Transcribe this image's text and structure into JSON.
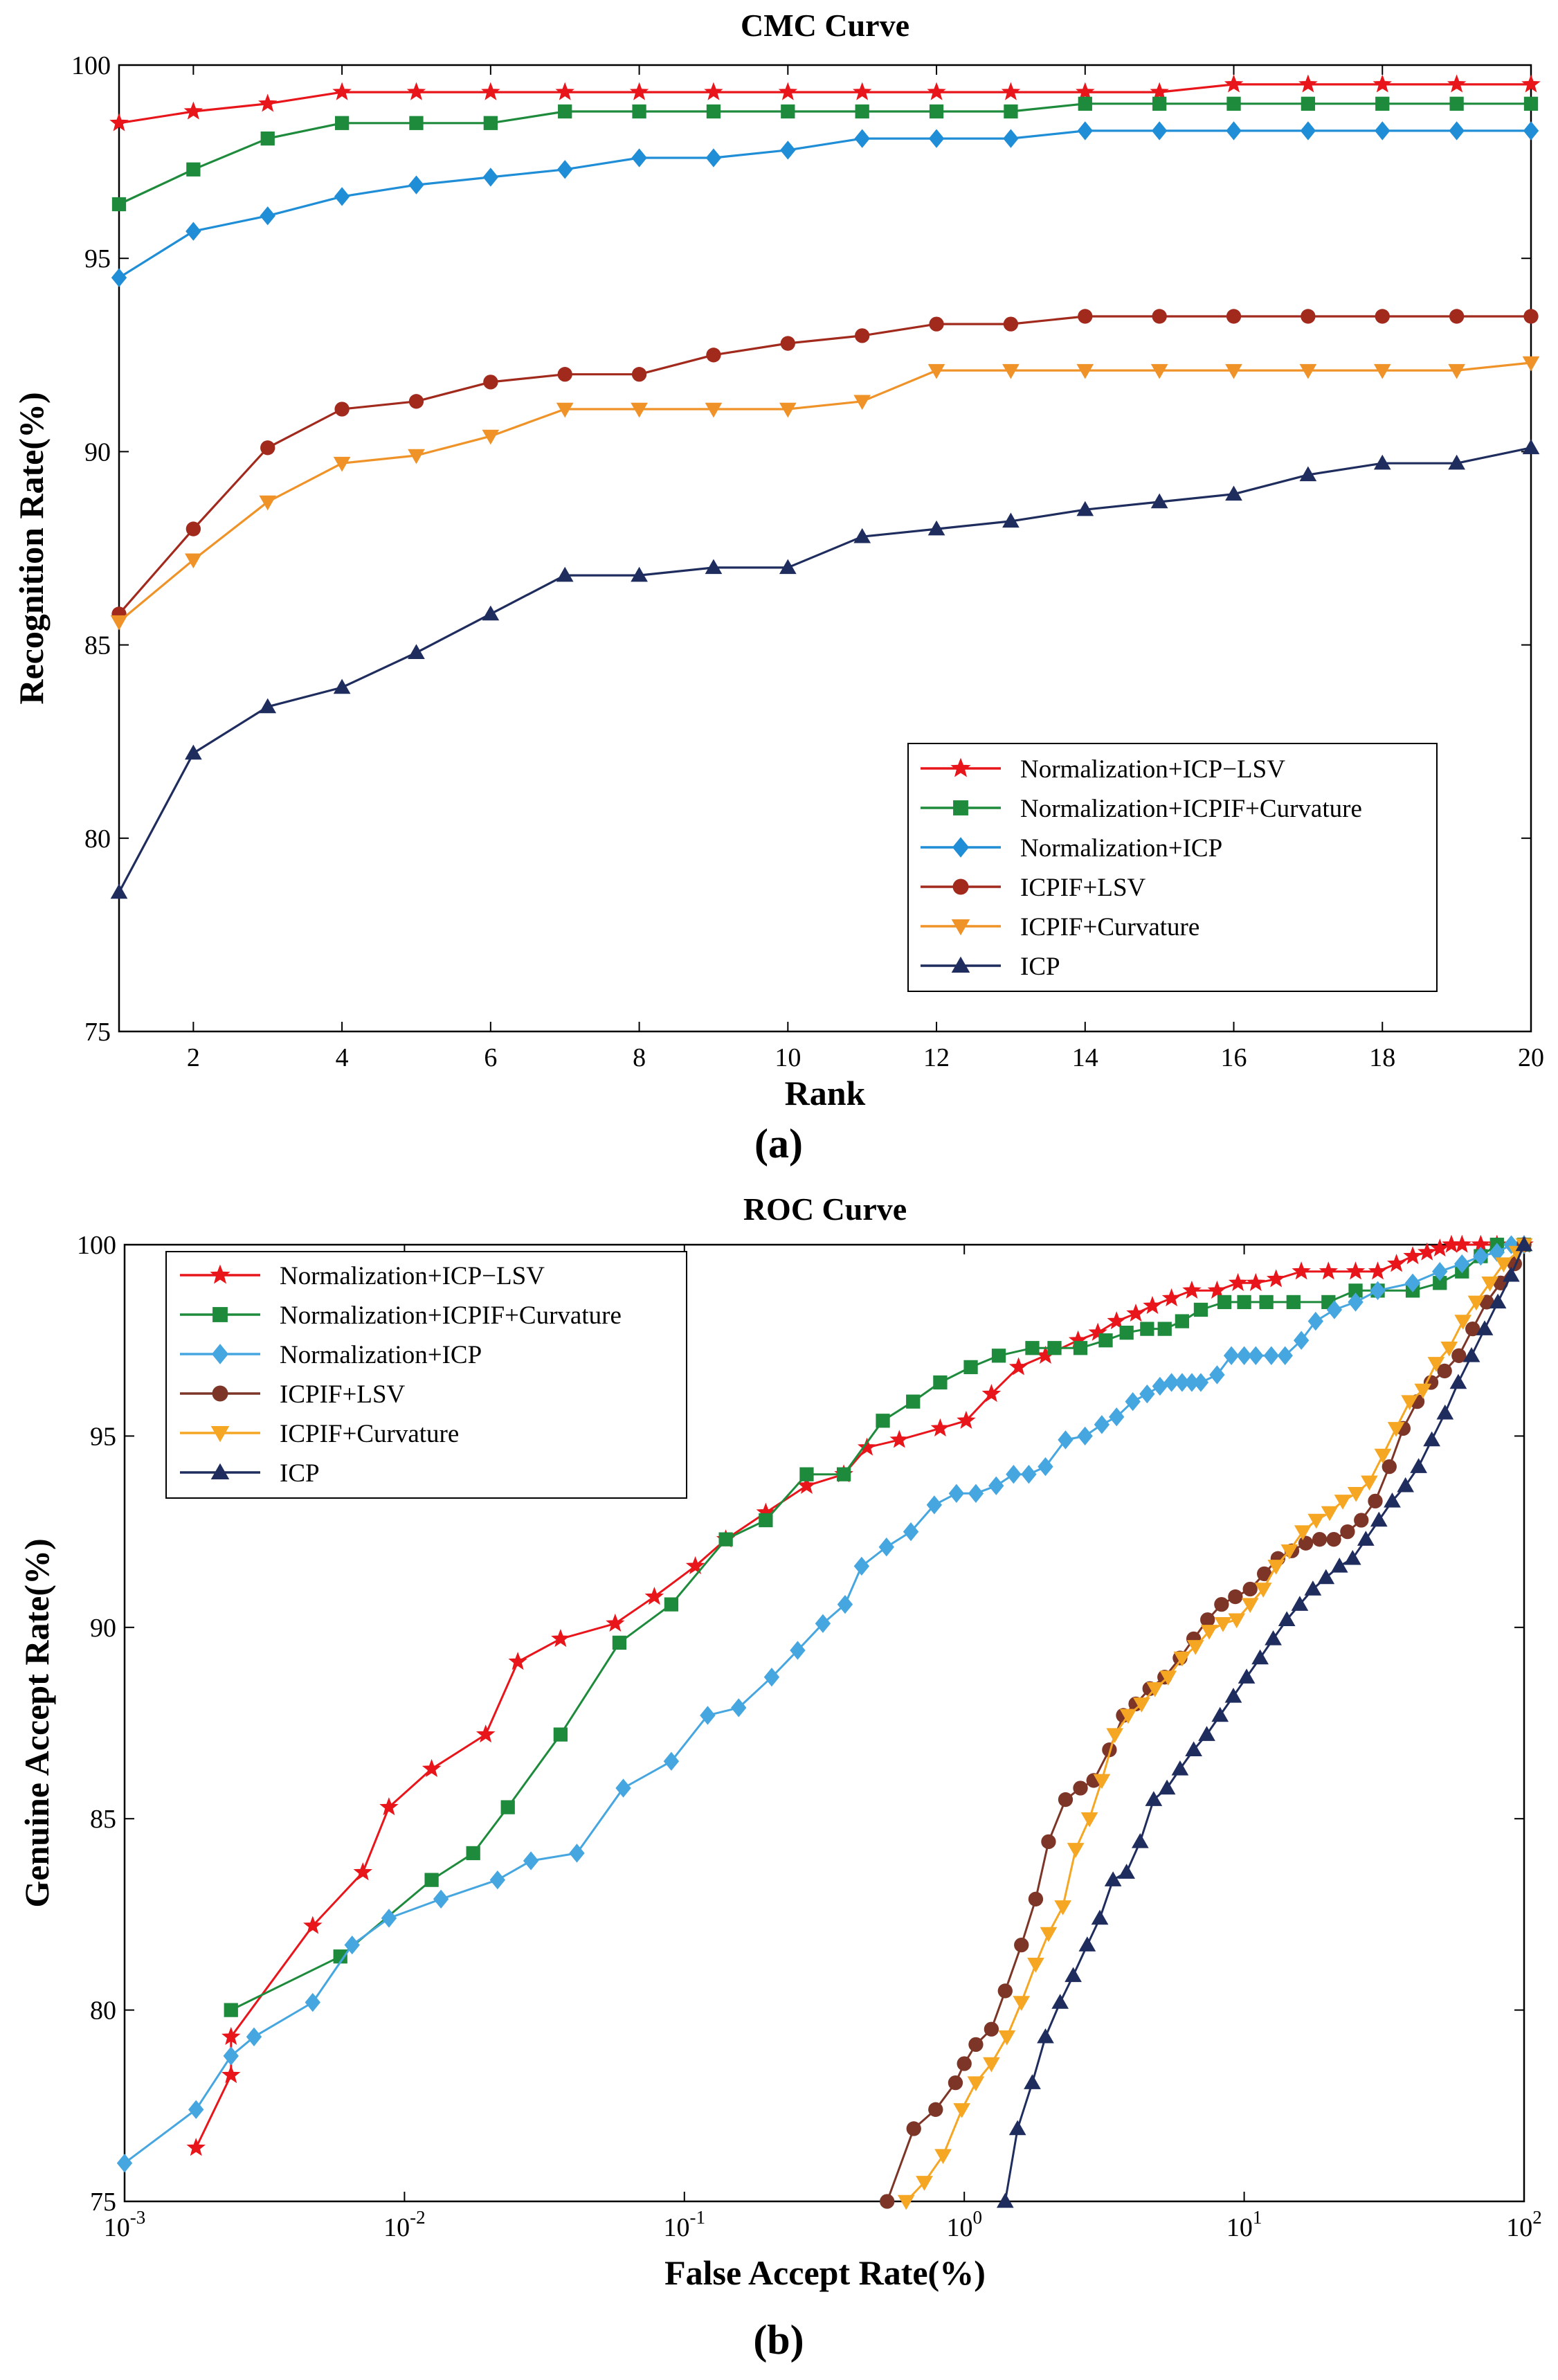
{
  "figure": {
    "caption_a": "(a)",
    "caption_b": "(b)"
  },
  "chart_data": [
    {
      "id": "cmc",
      "type": "line",
      "title": "CMC Curve",
      "xlabel": "Rank",
      "ylabel": "Recognition Rate(%)",
      "xlim": [
        1,
        20
      ],
      "ylim": [
        75,
        100
      ],
      "xscale": "linear",
      "xticks": [
        2,
        4,
        6,
        8,
        10,
        12,
        14,
        16,
        18,
        20
      ],
      "xtick_labels": [
        "2",
        "4",
        "6",
        "8",
        "10",
        "12",
        "14",
        "16",
        "18",
        "20"
      ],
      "yticks": [
        75,
        80,
        85,
        90,
        95,
        100
      ],
      "ytick_labels": [
        "75",
        "80",
        "85",
        "90",
        "95",
        "100"
      ],
      "legend_position": "lower-right",
      "x": [
        1,
        2,
        3,
        4,
        5,
        6,
        7,
        8,
        9,
        10,
        11,
        12,
        13,
        14,
        15,
        16,
        17,
        18,
        19,
        20
      ],
      "series": [
        {
          "name": "Normalization+ICP−LSV",
          "color": "#e8151b",
          "marker": "star",
          "values": [
            98.5,
            98.8,
            99.0,
            99.3,
            99.3,
            99.3,
            99.3,
            99.3,
            99.3,
            99.3,
            99.3,
            99.3,
            99.3,
            99.3,
            99.3,
            99.5,
            99.5,
            99.5,
            99.5,
            99.5
          ]
        },
        {
          "name": "Normalization+ICPIF+Curvature",
          "color": "#1e8b3c",
          "marker": "square",
          "values": [
            96.4,
            97.3,
            98.1,
            98.5,
            98.5,
            98.5,
            98.8,
            98.8,
            98.8,
            98.8,
            98.8,
            98.8,
            98.8,
            99.0,
            99.0,
            99.0,
            99.0,
            99.0,
            99.0,
            99.0
          ]
        },
        {
          "name": "Normalization+ICP",
          "color": "#1f8ed6",
          "marker": "diamond",
          "values": [
            94.5,
            95.7,
            96.1,
            96.6,
            96.9,
            97.1,
            97.3,
            97.6,
            97.6,
            97.8,
            98.1,
            98.1,
            98.1,
            98.3,
            98.3,
            98.3,
            98.3,
            98.3,
            98.3,
            98.3
          ]
        },
        {
          "name": "ICPIF+LSV",
          "color": "#a12a1d",
          "marker": "circle",
          "values": [
            85.8,
            88.0,
            90.1,
            91.1,
            91.3,
            91.8,
            92.0,
            92.0,
            92.5,
            92.8,
            93.0,
            93.3,
            93.3,
            93.5,
            93.5,
            93.5,
            93.5,
            93.5,
            93.5,
            93.5
          ]
        },
        {
          "name": "ICPIF+Curvature",
          "color": "#ef9329",
          "marker": "triangle-down",
          "values": [
            85.6,
            87.2,
            88.7,
            89.7,
            89.9,
            90.4,
            91.1,
            91.1,
            91.1,
            91.1,
            91.3,
            92.1,
            92.1,
            92.1,
            92.1,
            92.1,
            92.1,
            92.1,
            92.1,
            92.3
          ]
        },
        {
          "name": "ICP",
          "color": "#1f2d5e",
          "marker": "triangle-up",
          "values": [
            78.6,
            82.2,
            83.4,
            83.9,
            84.8,
            85.8,
            86.8,
            86.8,
            87.0,
            87.0,
            87.8,
            88.0,
            88.2,
            88.5,
            88.7,
            88.9,
            89.4,
            89.7,
            89.7,
            90.1
          ]
        }
      ]
    },
    {
      "id": "roc",
      "type": "line",
      "title": "ROC Curve",
      "xlabel": "False Accept Rate(%)",
      "ylabel": "Genuine Accept Rate(%)",
      "xlim": [
        0.001,
        100
      ],
      "ylim": [
        75,
        100
      ],
      "xscale": "log",
      "xticks": [
        0.001,
        0.01,
        0.1,
        1,
        10,
        100
      ],
      "xtick_labels": [
        [
          "10",
          "-3"
        ],
        [
          "10",
          "-2"
        ],
        [
          "10",
          "-1"
        ],
        [
          "10",
          "0"
        ],
        [
          "10",
          "1"
        ],
        [
          "10",
          "2"
        ]
      ],
      "yticks": [
        75,
        80,
        85,
        90,
        95,
        100
      ],
      "ytick_labels": [
        "75",
        "80",
        "85",
        "90",
        "95",
        "100"
      ],
      "legend_position": "upper-left",
      "series": [
        {
          "name": "Normalization+ICP−LSV",
          "color": "#e8151b",
          "marker": "star",
          "x": [
            0.0018,
            0.0024,
            0.0024,
            0.0047,
            0.0071,
            0.0088,
            0.0125,
            0.0195,
            0.0254,
            0.0361,
            0.0566,
            0.0781,
            0.1094,
            0.1406,
            0.1953,
            0.2734,
            0.3711,
            0.4492,
            0.5859,
            0.8203,
            1.0156,
            1.25,
            1.5625,
            1.95,
            2.55,
            3.0,
            3.5,
            4.1,
            4.7,
            5.5,
            6.5,
            8.0,
            9.5,
            11.0,
            13.0,
            16.0,
            20.0,
            25.0,
            30.0,
            35.0,
            40.0,
            45.0,
            50.0,
            55.0,
            60.0,
            70.0,
            80.0,
            100.0
          ],
          "y": [
            76.4,
            78.3,
            79.3,
            82.2,
            83.6,
            85.3,
            86.3,
            87.2,
            89.1,
            89.7,
            90.1,
            90.8,
            91.6,
            92.3,
            93.0,
            93.7,
            94.0,
            94.7,
            94.9,
            95.2,
            95.4,
            96.1,
            96.8,
            97.1,
            97.5,
            97.7,
            98.0,
            98.2,
            98.4,
            98.6,
            98.8,
            98.8,
            99.0,
            99.0,
            99.1,
            99.3,
            99.3,
            99.3,
            99.3,
            99.5,
            99.7,
            99.8,
            99.9,
            100.0,
            100.0,
            100.0,
            100.0,
            100.0
          ]
        },
        {
          "name": "Normalization+ICPIF+Curvature",
          "color": "#1e8b3c",
          "marker": "square",
          "x": [
            0.0024,
            0.0059,
            0.0125,
            0.0176,
            0.0234,
            0.0361,
            0.0586,
            0.0898,
            0.1406,
            0.1953,
            0.2734,
            0.3711,
            0.5117,
            0.6563,
            0.8203,
            1.0547,
            1.3281,
            1.75,
            2.1,
            2.6,
            3.2,
            3.8,
            4.5,
            5.2,
            6.0,
            7.0,
            8.5,
            10.0,
            12.0,
            15.0,
            20.0,
            25.0,
            30.0,
            40.0,
            50.0,
            60.0,
            70.0,
            80.0,
            100.0
          ],
          "y": [
            80.0,
            81.4,
            83.4,
            84.1,
            85.3,
            87.2,
            89.6,
            90.6,
            92.3,
            92.8,
            94.0,
            94.0,
            95.4,
            95.9,
            96.4,
            96.8,
            97.1,
            97.3,
            97.3,
            97.3,
            97.5,
            97.7,
            97.8,
            97.8,
            98.0,
            98.3,
            98.5,
            98.5,
            98.5,
            98.5,
            98.5,
            98.8,
            98.8,
            98.8,
            99.0,
            99.3,
            99.7,
            100.0,
            100.0
          ]
        },
        {
          "name": "Normalization+ICP",
          "color": "#46a6df",
          "marker": "diamond",
          "x": [
            0.001,
            0.0018,
            0.0024,
            0.0029,
            0.0047,
            0.0065,
            0.0088,
            0.0135,
            0.0215,
            0.0283,
            0.0413,
            0.0605,
            0.0898,
            0.1211,
            0.1563,
            0.2051,
            0.2539,
            0.3125,
            0.375,
            0.4297,
            0.5273,
            0.6445,
            0.7813,
            0.9375,
            1.1,
            1.3,
            1.5,
            1.7,
            1.95,
            2.3,
            2.7,
            3.1,
            3.5,
            4.0,
            4.5,
            5.0,
            5.5,
            6.0,
            6.5,
            7.0,
            8.0,
            9.0,
            10.0,
            11.0,
            12.5,
            14.0,
            16.0,
            18.0,
            21.0,
            25.0,
            30.0,
            40.0,
            50.0,
            60.0,
            70.0,
            80.0,
            90.0,
            100.0
          ],
          "y": [
            76.0,
            77.4,
            78.8,
            79.3,
            80.2,
            81.7,
            82.4,
            82.9,
            83.4,
            83.9,
            84.1,
            85.8,
            86.5,
            87.7,
            87.9,
            88.7,
            89.4,
            90.1,
            90.6,
            91.6,
            92.1,
            92.5,
            93.2,
            93.5,
            93.5,
            93.7,
            94.0,
            94.0,
            94.2,
            94.9,
            95.0,
            95.3,
            95.5,
            95.9,
            96.1,
            96.3,
            96.4,
            96.4,
            96.4,
            96.4,
            96.6,
            97.1,
            97.1,
            97.1,
            97.1,
            97.1,
            97.5,
            98.0,
            98.3,
            98.5,
            98.8,
            99.0,
            99.3,
            99.5,
            99.7,
            99.8,
            100.0,
            100.0
          ]
        },
        {
          "name": "ICPIF+LSV",
          "color": "#7c3526",
          "marker": "circle",
          "x": [
            0.53,
            0.66,
            0.79,
            0.93,
            1.0,
            1.1,
            1.25,
            1.4,
            1.6,
            1.8,
            2.0,
            2.3,
            2.6,
            2.9,
            3.3,
            3.7,
            4.1,
            4.6,
            5.2,
            5.9,
            6.6,
            7.4,
            8.3,
            9.3,
            10.5,
            11.8,
            13.2,
            14.8,
            16.6,
            18.6,
            20.9,
            23.4,
            26.2,
            29.4,
            33.0,
            37.0,
            41.5,
            46.5,
            52.0,
            58.5,
            65.5,
            73.5,
            82.5,
            92.5,
            100.0
          ],
          "y": [
            75.0,
            76.9,
            77.4,
            78.1,
            78.6,
            79.1,
            79.5,
            80.5,
            81.7,
            82.9,
            84.4,
            85.5,
            85.8,
            86.0,
            86.8,
            87.7,
            88.0,
            88.4,
            88.7,
            89.2,
            89.7,
            90.2,
            90.6,
            90.8,
            91.0,
            91.4,
            91.8,
            92.0,
            92.2,
            92.3,
            92.3,
            92.5,
            92.8,
            93.3,
            94.2,
            95.2,
            95.9,
            96.4,
            96.7,
            97.1,
            97.8,
            98.5,
            99.0,
            99.5,
            100.0
          ]
        },
        {
          "name": "ICPIF+Curvature",
          "color": "#f5a623",
          "marker": "triangle-down",
          "x": [
            0.62,
            0.72,
            0.84,
            0.98,
            1.1,
            1.25,
            1.42,
            1.6,
            1.8,
            2.0,
            2.25,
            2.5,
            2.8,
            3.1,
            3.45,
            3.85,
            4.3,
            4.8,
            5.35,
            6.0,
            6.7,
            7.5,
            8.4,
            9.4,
            10.5,
            11.7,
            13.0,
            14.5,
            16.2,
            18.1,
            20.2,
            22.5,
            25.1,
            28.0,
            31.3,
            34.9,
            39.0,
            43.5,
            48.5,
            54.0,
            60.5,
            67.5,
            75.5,
            84.5,
            94.5,
            100.0
          ],
          "y": [
            75.0,
            75.5,
            76.2,
            77.4,
            78.1,
            78.6,
            79.3,
            80.2,
            81.2,
            82.0,
            82.7,
            84.2,
            85.0,
            86.0,
            87.2,
            87.7,
            88.0,
            88.4,
            88.7,
            89.2,
            89.5,
            89.9,
            90.1,
            90.2,
            90.6,
            91.0,
            91.6,
            92.0,
            92.5,
            92.8,
            93.0,
            93.3,
            93.5,
            93.8,
            94.5,
            95.2,
            95.9,
            96.2,
            96.9,
            97.3,
            98.0,
            98.5,
            99.0,
            99.5,
            99.8,
            100.0
          ]
        },
        {
          "name": "ICP",
          "color": "#1f2d5e",
          "marker": "triangle-up",
          "x": [
            1.4,
            1.55,
            1.75,
            1.95,
            2.2,
            2.45,
            2.75,
            3.05,
            3.4,
            3.8,
            4.25,
            4.75,
            5.3,
            5.9,
            6.6,
            7.35,
            8.2,
            9.15,
            10.2,
            11.4,
            12.7,
            14.2,
            15.8,
            17.6,
            19.6,
            21.9,
            24.4,
            27.2,
            30.3,
            33.8,
            37.7,
            42.0,
            46.8,
            52.2,
            58.2,
            64.9,
            72.3,
            80.6,
            89.9,
            100.0
          ],
          "y": [
            75.0,
            76.9,
            78.1,
            79.3,
            80.2,
            80.9,
            81.7,
            82.4,
            83.4,
            83.6,
            84.4,
            85.5,
            85.8,
            86.3,
            86.8,
            87.2,
            87.7,
            88.2,
            88.7,
            89.2,
            89.7,
            90.2,
            90.6,
            91.0,
            91.3,
            91.6,
            91.8,
            92.3,
            92.8,
            93.3,
            93.7,
            94.2,
            94.9,
            95.6,
            96.4,
            97.1,
            97.8,
            98.5,
            99.2,
            100.0
          ]
        }
      ]
    }
  ]
}
